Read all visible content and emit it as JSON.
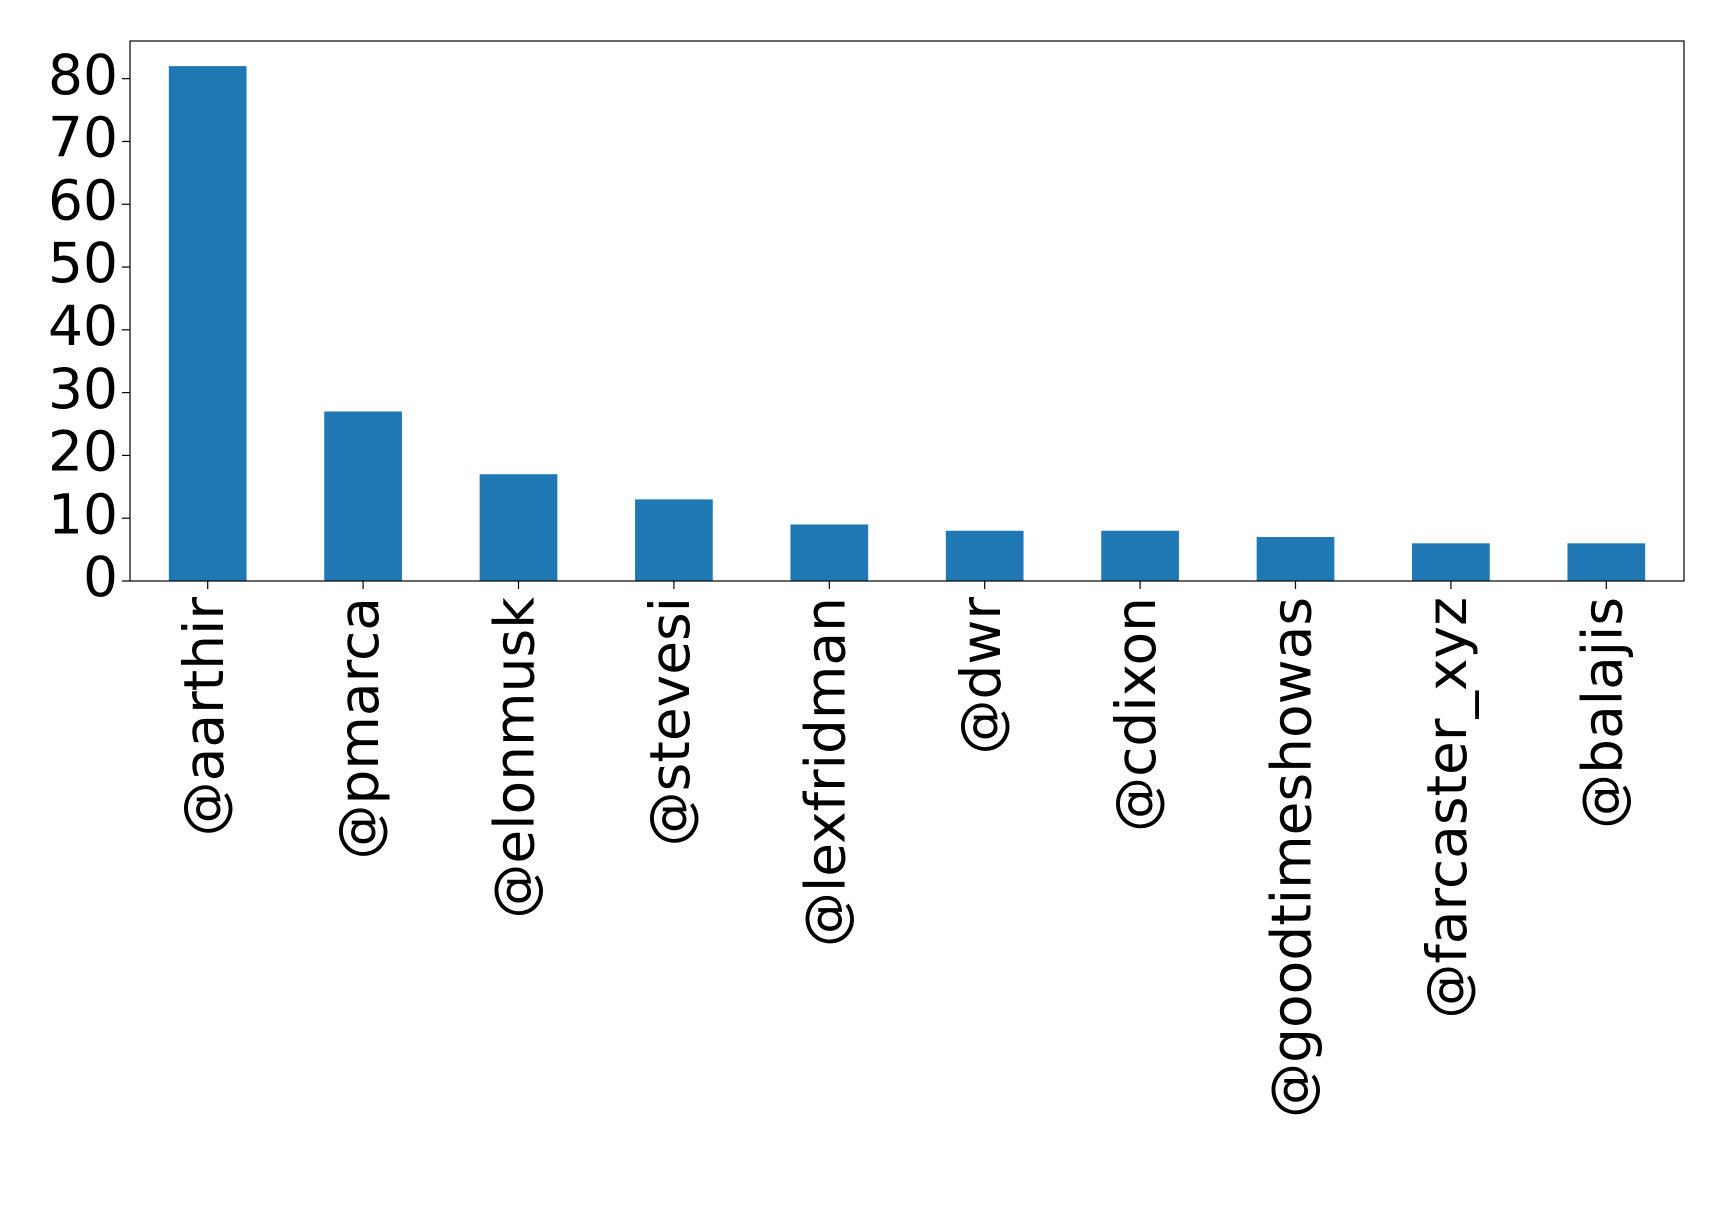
{
  "chart_data": {
    "type": "bar",
    "categories": [
      "@aarthir",
      "@pmarca",
      "@elonmusk",
      "@stevesi",
      "@lexfridman",
      "@dwr",
      "@cdixon",
      "@goodtimeshowas",
      "@farcaster_xyz",
      "@balajis"
    ],
    "values": [
      82,
      27,
      17,
      13,
      9,
      8,
      8,
      7,
      6,
      6
    ],
    "color": "#1f77b4",
    "ylim": [
      0,
      86
    ],
    "yticks": [
      0,
      10,
      20,
      30,
      40,
      50,
      60,
      70,
      80
    ],
    "grid": false
  }
}
